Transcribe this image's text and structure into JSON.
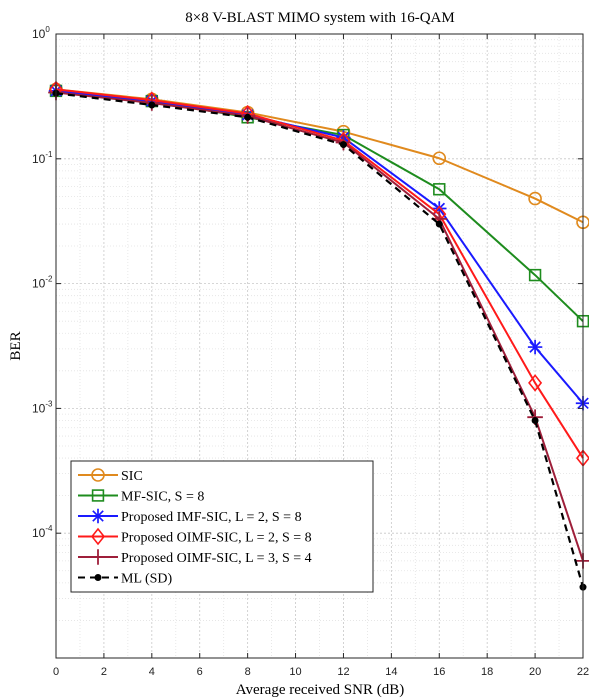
{
  "chart_data": {
    "type": "line",
    "title": "8×8 V-BLAST MIMO system with 16-QAM",
    "xlabel": "Average received SNR (dB)",
    "ylabel": "BER",
    "xlim": [
      0,
      22
    ],
    "ylim": [
      1e-05,
      1
    ],
    "yscale": "log",
    "grid": "major and minor, dotted",
    "legend_position": "bottom-left",
    "x_ticks": [
      "0",
      "2",
      "4",
      "6",
      "8",
      "10",
      "12",
      "14",
      "16",
      "18",
      "20",
      "22"
    ],
    "y_ticks": [
      {
        "base": "10",
        "exp": "0"
      },
      {
        "base": "10",
        "exp": "-1"
      },
      {
        "base": "10",
        "exp": "-2"
      },
      {
        "base": "10",
        "exp": "-3"
      },
      {
        "base": "10",
        "exp": "-4"
      }
    ],
    "series": [
      {
        "name": "SIC",
        "color": "#e08a1e",
        "marker": "circle",
        "dash": "solid",
        "x": [
          0,
          4,
          8,
          12,
          16,
          20,
          22
        ],
        "y": [
          0.36,
          0.3,
          0.235,
          0.165,
          0.101,
          0.048,
          0.031
        ]
      },
      {
        "name": "MF-SIC, S = 8",
        "color": "#1e8c1e",
        "marker": "square",
        "dash": "solid",
        "x": [
          0,
          4,
          8,
          12,
          16,
          20,
          22
        ],
        "y": [
          0.35,
          0.29,
          0.215,
          0.155,
          0.057,
          0.0117,
          0.005
        ]
      },
      {
        "name": "Proposed IMF-SIC, L = 2, S = 8",
        "color": "#1a1aff",
        "marker": "asterisk",
        "dash": "solid",
        "x": [
          0,
          4,
          8,
          12,
          16,
          20,
          22
        ],
        "y": [
          0.35,
          0.29,
          0.225,
          0.148,
          0.04,
          0.0031,
          0.0011
        ]
      },
      {
        "name": "Proposed OIMF-SIC, L = 2, S = 8",
        "color": "#ff1a1a",
        "marker": "diamond",
        "dash": "solid",
        "x": [
          0,
          4,
          8,
          12,
          16,
          20,
          22
        ],
        "y": [
          0.36,
          0.295,
          0.23,
          0.14,
          0.036,
          0.0016,
          0.0004
        ]
      },
      {
        "name": "Proposed OIMF-SIC, L = 3, S = 4",
        "color": "#9e1f3a",
        "marker": "plus",
        "dash": "solid",
        "x": [
          0,
          4,
          8,
          12,
          16,
          20,
          22
        ],
        "y": [
          0.34,
          0.28,
          0.22,
          0.135,
          0.033,
          0.00085,
          6e-05
        ]
      },
      {
        "name": "ML (SD)",
        "color": "#000000",
        "marker": "dot",
        "dash": "dashed",
        "x": [
          0,
          4,
          8,
          12,
          16,
          20,
          22
        ],
        "y": [
          0.335,
          0.27,
          0.215,
          0.13,
          0.03,
          0.0008,
          3.7e-05
        ]
      }
    ]
  }
}
